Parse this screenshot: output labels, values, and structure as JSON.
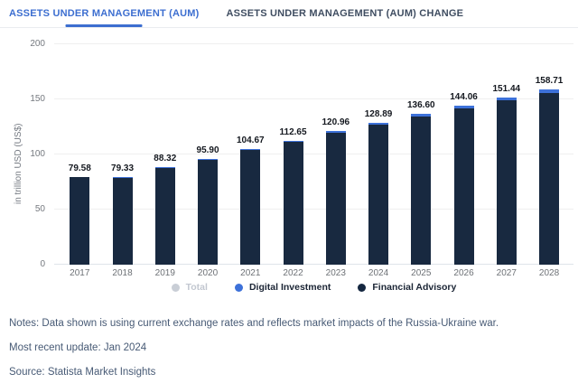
{
  "tabs": [
    {
      "label": "ASSETS UNDER MANAGEMENT (AUM)",
      "active": true
    },
    {
      "label": "ASSETS UNDER MANAGEMENT (AUM) CHANGE",
      "active": false
    }
  ],
  "chart_data": {
    "type": "bar",
    "stacked": true,
    "categories": [
      "2017",
      "2018",
      "2019",
      "2020",
      "2021",
      "2022",
      "2023",
      "2024",
      "2025",
      "2026",
      "2027",
      "2028"
    ],
    "totals": [
      79.58,
      79.33,
      88.32,
      95.9,
      104.67,
      112.65,
      120.96,
      128.89,
      136.6,
      144.06,
      151.44,
      158.71
    ],
    "value_labels": [
      "79.58",
      "79.33",
      "88.32",
      "95.90",
      "104.67",
      "112.65",
      "120.96",
      "128.89",
      "136.60",
      "144.06",
      "151.44",
      "158.71"
    ],
    "series": [
      {
        "name": "Digital Investment",
        "color": "#3d71d9",
        "values": [
          0.29,
          0.44,
          0.72,
          0.95,
          1.06,
          1.21,
          1.58,
          1.84,
          2.15,
          2.45,
          2.78,
          3.31
        ]
      },
      {
        "name": "Financial Advisory",
        "color": "#182940",
        "values": [
          79.29,
          78.89,
          87.6,
          94.95,
          103.61,
          111.44,
          119.38,
          127.05,
          134.45,
          141.61,
          148.66,
          155.4
        ]
      }
    ],
    "title": "",
    "xlabel": "",
    "ylabel": "in trillion USD (US$)",
    "yticks": [
      0,
      50,
      100,
      150,
      200
    ],
    "ylim": [
      0,
      200
    ],
    "grid": true,
    "legend_position": "bottom",
    "legend": [
      {
        "label": "Total",
        "color": "#c9ced6",
        "disabled": true
      },
      {
        "label": "Digital Investment",
        "color": "#3d71d9",
        "disabled": false
      },
      {
        "label": "Financial Advisory",
        "color": "#152740",
        "disabled": false
      }
    ]
  },
  "notes": {
    "line1": "Notes: Data shown is using current exchange rates and reflects market impacts of the Russia-Ukraine war.",
    "line2": "Most recent update: Jan 2024",
    "line3": "Source: Statista Market Insights"
  },
  "colors": {
    "accent_blue": "#3c6ed0",
    "bar_navy": "#182940",
    "bar_blue": "#3d71d9",
    "tab_inactive": "#3f4d61",
    "notes_text": "#475a75"
  }
}
